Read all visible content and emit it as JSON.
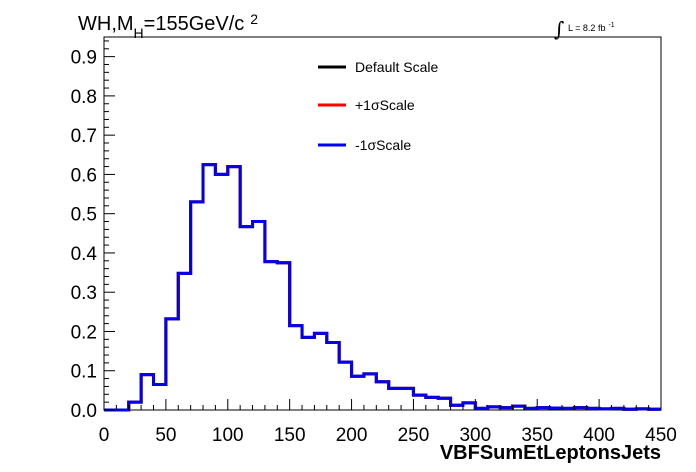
{
  "chart_data": {
    "type": "line",
    "title": {
      "main": "WH,M",
      "subscript": "H",
      "rest": "=155GeV/c",
      "superscript": "2"
    },
    "luminosity": {
      "symbol": "∫",
      "text": "L = 8.2 fb",
      "superscript": "-1"
    },
    "xlabel": "VBFSumEtLeptonsJets",
    "ylabel": "",
    "xlim": [
      0,
      450
    ],
    "ylim": [
      0,
      0.95
    ],
    "x_ticks": [
      0,
      50,
      100,
      150,
      200,
      250,
      300,
      350,
      400,
      450
    ],
    "x_tick_labels": [
      "0",
      "50",
      "100",
      "150",
      "200",
      "250",
      "300",
      "350",
      "400",
      "450"
    ],
    "y_ticks": [
      0,
      0.1,
      0.2,
      0.3,
      0.4,
      0.5,
      0.6,
      0.7,
      0.8,
      0.9
    ],
    "y_tick_labels": [
      "0.0",
      "0.1",
      "0.2",
      "0.3",
      "0.4",
      "0.5",
      "0.6",
      "0.7",
      "0.8",
      "0.9"
    ],
    "grid": false,
    "legend_position": "top-center",
    "bin_edges": [
      0,
      10,
      20,
      30,
      40,
      50,
      60,
      70,
      80,
      90,
      100,
      110,
      120,
      130,
      140,
      150,
      160,
      170,
      180,
      190,
      200,
      210,
      220,
      230,
      240,
      250,
      260,
      270,
      280,
      290,
      300,
      310,
      320,
      330,
      340,
      350,
      360,
      370,
      380,
      390,
      400,
      410,
      420,
      430,
      440,
      450
    ],
    "series": [
      {
        "name": "Default Scale",
        "color": "#000000",
        "values": [
          0,
          0,
          0.02,
          0.09,
          0.065,
          0.232,
          0.348,
          0.53,
          0.625,
          0.6,
          0.62,
          0.467,
          0.48,
          0.378,
          0.375,
          0.215,
          0.185,
          0.195,
          0.172,
          0.122,
          0.086,
          0.092,
          0.072,
          0.055,
          0.055,
          0.038,
          0.032,
          0.03,
          0.012,
          0.018,
          0.004,
          0.008,
          0.006,
          0.01,
          0.004,
          0.006,
          0.005,
          0.004,
          0.006,
          0.004,
          0.003,
          0.004,
          0.002,
          0.003,
          0.002
        ]
      },
      {
        "name": "+1σScale",
        "color": "#ff0000",
        "values": [
          0,
          0,
          0.02,
          0.09,
          0.065,
          0.232,
          0.348,
          0.53,
          0.625,
          0.6,
          0.62,
          0.467,
          0.48,
          0.378,
          0.375,
          0.215,
          0.185,
          0.195,
          0.172,
          0.122,
          0.086,
          0.092,
          0.072,
          0.055,
          0.055,
          0.038,
          0.032,
          0.03,
          0.012,
          0.018,
          0.004,
          0.008,
          0.006,
          0.01,
          0.004,
          0.006,
          0.005,
          0.004,
          0.006,
          0.004,
          0.003,
          0.004,
          0.002,
          0.003,
          0.002
        ]
      },
      {
        "name": "-1σScale",
        "color": "#0000ee",
        "values": [
          0,
          0,
          0.02,
          0.09,
          0.065,
          0.232,
          0.348,
          0.53,
          0.625,
          0.6,
          0.62,
          0.467,
          0.48,
          0.378,
          0.375,
          0.215,
          0.185,
          0.195,
          0.172,
          0.122,
          0.086,
          0.092,
          0.072,
          0.055,
          0.055,
          0.038,
          0.032,
          0.03,
          0.012,
          0.018,
          0.004,
          0.008,
          0.006,
          0.01,
          0.004,
          0.006,
          0.005,
          0.004,
          0.006,
          0.004,
          0.003,
          0.004,
          0.002,
          0.003,
          0.002
        ]
      }
    ]
  }
}
